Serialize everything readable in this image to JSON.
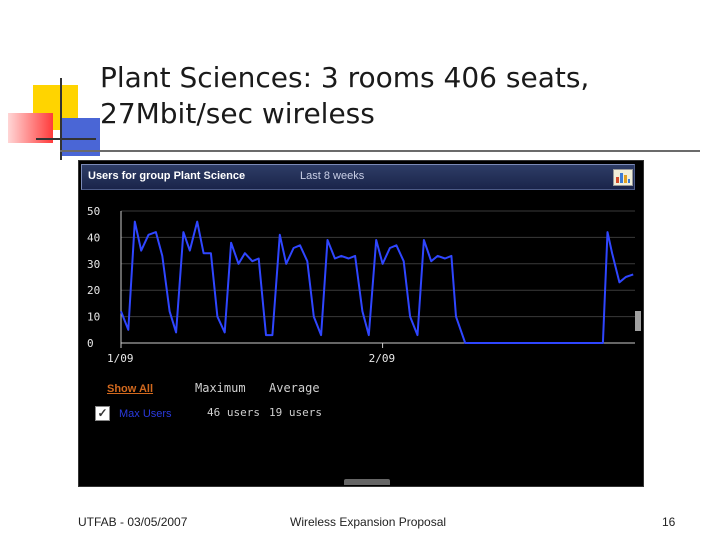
{
  "slide": {
    "title_line1": "Plant Sciences: 3 rooms 406 seats,",
    "title_line2": "27Mbit/sec wireless",
    "footer_left": "UTFAB - 03/05/2007",
    "footer_center": "Wireless Expansion Proposal",
    "footer_right": "16"
  },
  "widget": {
    "title": "Users for group Plant Science",
    "range": "Last 8 weeks",
    "show_all": "Show All",
    "col_max": "Maximum",
    "col_avg": "Average",
    "series_label": "Max Users",
    "max_value": "46 users",
    "avg_value": "19 users",
    "checked": true
  },
  "colors": {
    "line": "#2f46ff",
    "background": "#000000",
    "grid": "#3a3a3a",
    "header": "#1f2a52"
  },
  "chart_data": {
    "type": "line",
    "title": "Users for group Plant Science",
    "xlabel": "",
    "ylabel": "",
    "ylim": [
      0,
      50
    ],
    "yticks": [
      0,
      10,
      20,
      30,
      40,
      50
    ],
    "xlim": [
      0,
      56
    ],
    "xticks": [
      {
        "x": 0,
        "label": "1/09"
      },
      {
        "x": 28.5,
        "label": "2/09"
      }
    ],
    "grid": true,
    "series": [
      {
        "name": "Max Users",
        "x": [
          0,
          0.8,
          1.5,
          2.2,
          3,
          3.8,
          4.5,
          5.3,
          6,
          6.8,
          7.5,
          8.3,
          9,
          9.8,
          10.5,
          11.3,
          12,
          12.8,
          13.5,
          14.3,
          15,
          15.8,
          16.5,
          17.3,
          18,
          18.8,
          19.5,
          20.3,
          21,
          21.8,
          22.5,
          23.3,
          24,
          24.8,
          25.5,
          26.3,
          27,
          27.8,
          28.5,
          29.3,
          30,
          30.8,
          31.5,
          32.3,
          33,
          33.8,
          34.5,
          35.3,
          36,
          36.5,
          37.5,
          40,
          45,
          50,
          52.5,
          53,
          53.5,
          54.3,
          55,
          55.8
        ],
        "y": [
          12,
          5,
          46,
          35,
          41,
          42,
          33,
          12,
          4,
          42,
          35,
          46,
          34,
          34,
          10,
          4,
          38,
          30,
          34,
          31,
          32,
          3,
          3,
          41,
          30,
          36,
          37,
          31,
          10,
          3,
          39,
          32,
          33,
          32,
          33,
          12,
          3,
          39,
          30,
          36,
          37,
          31,
          10,
          3,
          39,
          31,
          33,
          32,
          33,
          10,
          0,
          0,
          0,
          0,
          0,
          42,
          34,
          23,
          25,
          26
        ]
      }
    ]
  }
}
